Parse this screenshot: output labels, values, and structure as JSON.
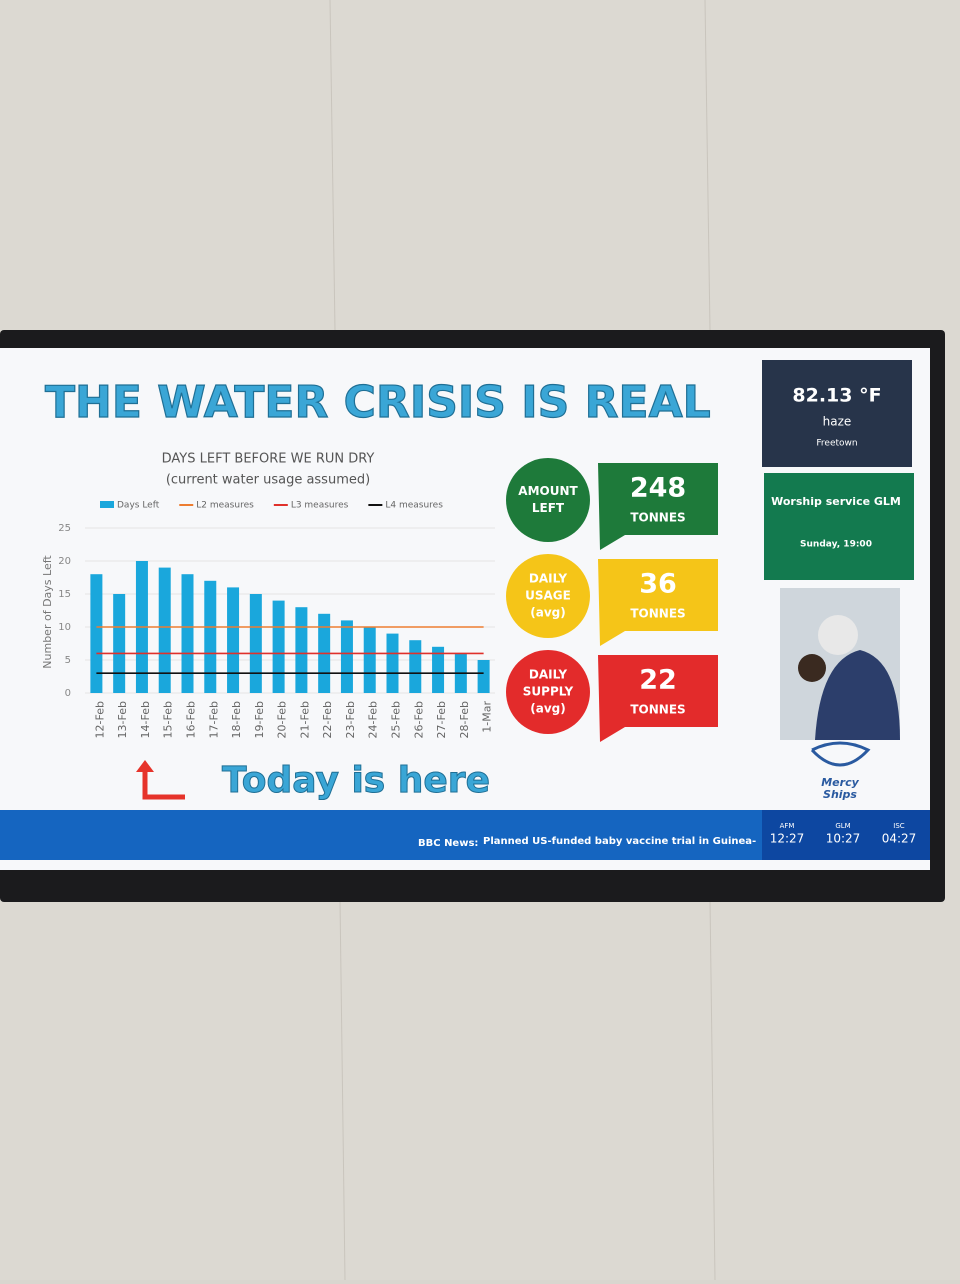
{
  "screen": {
    "heading": "THE WATER CRISIS IS REAL",
    "annotation": "Today is here",
    "stats": [
      {
        "label": [
          "AMOUNT",
          "LEFT"
        ],
        "value": "248",
        "unit": "TONNES"
      },
      {
        "label": [
          "DAILY",
          "USAGE",
          "(avg)"
        ],
        "value": "36",
        "unit": "TONNES"
      },
      {
        "label": [
          "DAILY",
          "SUPPLY",
          "(avg)"
        ],
        "value": "22",
        "unit": "TONNES"
      }
    ],
    "weather": {
      "temperature": "82.13 °F",
      "condition": "haze",
      "city": "Freetown"
    },
    "event": {
      "title": "Worship service GLM",
      "time": "Sunday, 19:00"
    },
    "logo": [
      "Mercy",
      "Ships"
    ],
    "ticker": {
      "source": "BBC News:",
      "headline": "Planned US-funded baby vaccine trial in Guinea-"
    },
    "clocks": [
      {
        "zone": "AFM",
        "time": "12:27"
      },
      {
        "zone": "GLM",
        "time": "10:27"
      },
      {
        "zone": "ISC",
        "time": "04:27"
      }
    ]
  },
  "chart_data": {
    "type": "bar",
    "title": "DAYS LEFT BEFORE WE RUN DRY",
    "subtitle": "(current water usage assumed)",
    "y_label": "Number of Days Left",
    "categories": [
      "12-Feb",
      "13-Feb",
      "14-Feb",
      "15-Feb",
      "16-Feb",
      "17-Feb",
      "18-Feb",
      "19-Feb",
      "20-Feb",
      "21-Feb",
      "22-Feb",
      "23-Feb",
      "24-Feb",
      "25-Feb",
      "26-Feb",
      "27-Feb",
      "28-Feb",
      "1-Mar"
    ],
    "series": [
      {
        "name": "Days Left",
        "type": "bar",
        "color": "#1aa7dc",
        "values": [
          18,
          15,
          20,
          19,
          18,
          17,
          16,
          15,
          14,
          13,
          12,
          11,
          10,
          9,
          8,
          7,
          6,
          5
        ]
      },
      {
        "name": "L2 measures",
        "type": "line",
        "color": "#ed7d31",
        "values": [
          10,
          10,
          10,
          10,
          10,
          10,
          10,
          10,
          10,
          10,
          10,
          10,
          10,
          10,
          10,
          10,
          10,
          10
        ]
      },
      {
        "name": "L3 measures",
        "type": "line",
        "color": "#e0312b",
        "values": [
          6,
          6,
          6,
          6,
          6,
          6,
          6,
          6,
          6,
          6,
          6,
          6,
          6,
          6,
          6,
          6,
          6,
          6
        ]
      },
      {
        "name": "L4 measures",
        "type": "line",
        "color": "#111111",
        "values": [
          3,
          3,
          3,
          3,
          3,
          3,
          3,
          3,
          3,
          3,
          3,
          3,
          3,
          3,
          3,
          3,
          3,
          3
        ]
      }
    ],
    "ylim": [
      0,
      25
    ],
    "yticks": [
      0,
      5,
      10,
      15,
      20,
      25
    ],
    "grid": true
  }
}
